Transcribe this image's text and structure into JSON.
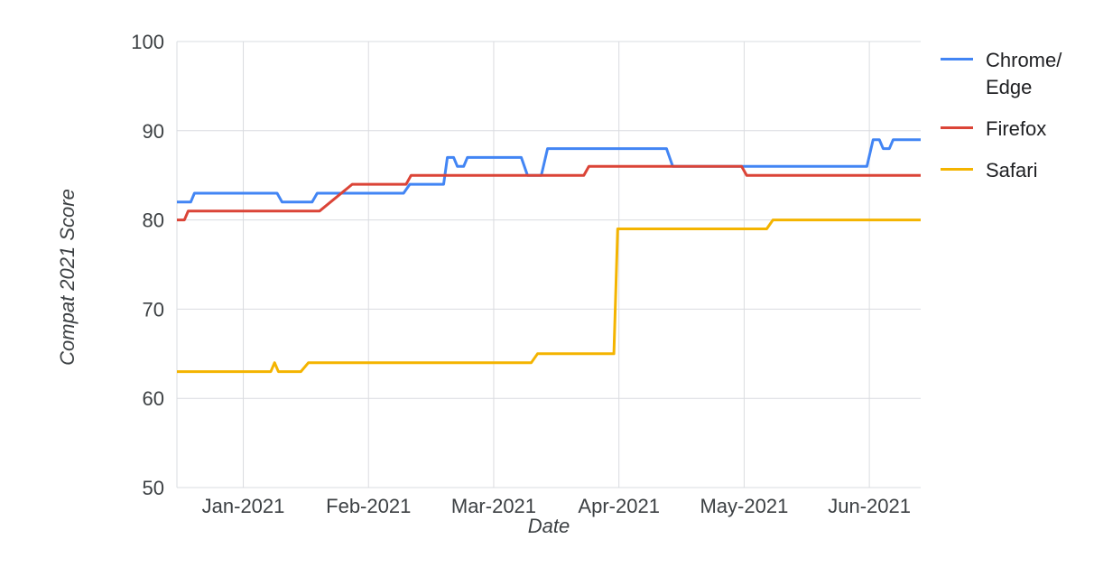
{
  "chart_data": {
    "type": "line",
    "title": "",
    "xlabel": "Date",
    "ylabel": "Compat 2021 Score",
    "x_unit": "months relative to Jan-2021 tick (0 = Jan-2021, 1 = Feb-2021, ...)",
    "xlim": [
      -0.53,
      5.41
    ],
    "ylim": [
      50,
      100
    ],
    "y_ticks": [
      50,
      60,
      70,
      80,
      90,
      100
    ],
    "x_ticks": [
      {
        "x": 0,
        "label": "Jan-2021"
      },
      {
        "x": 1,
        "label": "Feb-2021"
      },
      {
        "x": 2,
        "label": "Mar-2021"
      },
      {
        "x": 3,
        "label": "Apr-2021"
      },
      {
        "x": 4,
        "label": "May-2021"
      },
      {
        "x": 5,
        "label": "Jun-2021"
      }
    ],
    "grid": true,
    "grid_color": "#dadce0",
    "legend_position": "top-right",
    "series": [
      {
        "name": "Chrome/Edge",
        "legend_label": "Chrome/\nEdge",
        "color": "#4285F4",
        "points": [
          [
            -0.53,
            82
          ],
          [
            -0.42,
            82
          ],
          [
            -0.39,
            83
          ],
          [
            0.27,
            83
          ],
          [
            0.31,
            82
          ],
          [
            0.55,
            82
          ],
          [
            0.59,
            83
          ],
          [
            1.28,
            83
          ],
          [
            1.33,
            84
          ],
          [
            1.6,
            84
          ],
          [
            1.63,
            87
          ],
          [
            1.68,
            87
          ],
          [
            1.71,
            86
          ],
          [
            1.76,
            86
          ],
          [
            1.79,
            87
          ],
          [
            2.22,
            87
          ],
          [
            2.27,
            85
          ],
          [
            2.38,
            85
          ],
          [
            2.43,
            88
          ],
          [
            3.38,
            88
          ],
          [
            3.43,
            86
          ],
          [
            4.98,
            86
          ],
          [
            5.03,
            89
          ],
          [
            5.08,
            89
          ],
          [
            5.11,
            88
          ],
          [
            5.16,
            88
          ],
          [
            5.19,
            89
          ],
          [
            5.41,
            89
          ]
        ]
      },
      {
        "name": "Firefox",
        "legend_label": "Firefox",
        "color": "#DB4437",
        "points": [
          [
            -0.53,
            80
          ],
          [
            -0.47,
            80
          ],
          [
            -0.44,
            81
          ],
          [
            0.61,
            81
          ],
          [
            0.87,
            84
          ],
          [
            1.3,
            84
          ],
          [
            1.34,
            85
          ],
          [
            2.72,
            85
          ],
          [
            2.76,
            86
          ],
          [
            3.98,
            86
          ],
          [
            4.02,
            85
          ],
          [
            5.41,
            85
          ]
        ]
      },
      {
        "name": "Safari",
        "legend_label": "Safari",
        "color": "#F4B400",
        "points": [
          [
            -0.53,
            63
          ],
          [
            0.22,
            63
          ],
          [
            0.25,
            64
          ],
          [
            0.28,
            63
          ],
          [
            0.46,
            63
          ],
          [
            0.52,
            64
          ],
          [
            2.3,
            64
          ],
          [
            2.35,
            65
          ],
          [
            2.96,
            65
          ],
          [
            2.99,
            79
          ],
          [
            4.18,
            79
          ],
          [
            4.23,
            80
          ],
          [
            5.41,
            80
          ]
        ]
      }
    ]
  }
}
